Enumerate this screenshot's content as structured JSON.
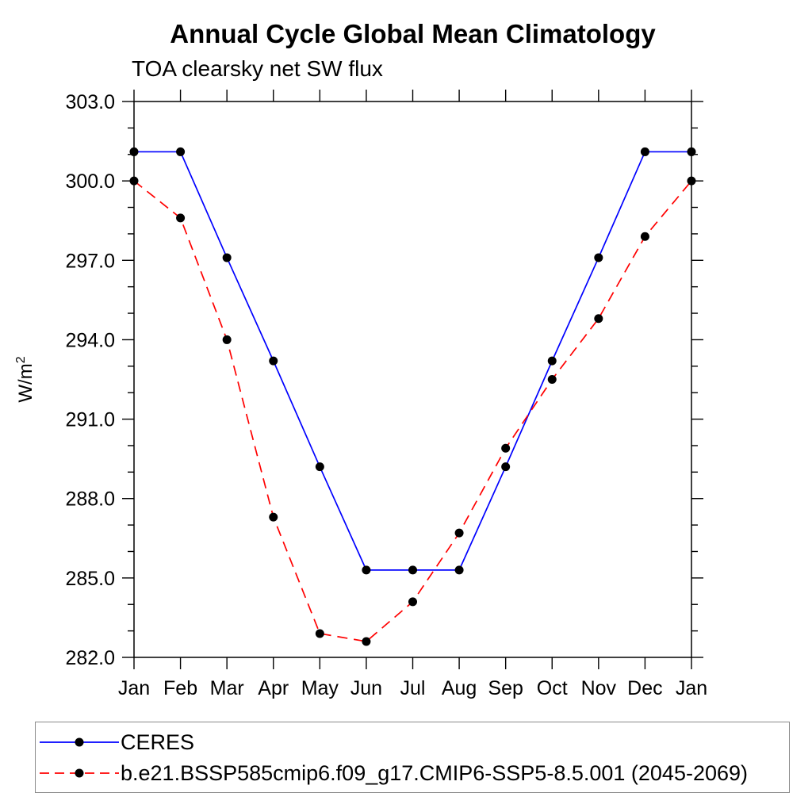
{
  "chart_data": {
    "type": "line",
    "title": "Annual Cycle Global Mean Climatology",
    "subtitle": "TOA clearsky net SW flux",
    "ylabel": "W/m²",
    "ylabel_base": "W/m",
    "ylabel_sup": "2",
    "xlabel": "",
    "categories": [
      "Jan",
      "Feb",
      "Mar",
      "Apr",
      "May",
      "Jun",
      "Jul",
      "Aug",
      "Sep",
      "Oct",
      "Nov",
      "Dec",
      "Jan"
    ],
    "ylim": [
      282.0,
      303.0
    ],
    "ytick_major_step": 3.0,
    "ytick_minor_step": 1.0,
    "ytick_label_format": "one_decimal",
    "grid": false,
    "legend_position": "bottom-left-box",
    "marker": "filled-circle",
    "marker_color": "#000000",
    "axis_color": "#000000",
    "series": [
      {
        "name": "CERES",
        "color": "#0000ff",
        "line_style": "solid",
        "values": [
          301.1,
          301.1,
          297.1,
          293.2,
          289.2,
          285.3,
          285.3,
          285.3,
          289.2,
          293.2,
          297.1,
          301.1,
          301.1
        ]
      },
      {
        "name": "b.e21.BSSP585cmip6.f09_g17.CMIP6-SSP5-8.5.001 (2045-2069)",
        "color": "#ff0000",
        "line_style": "dashed",
        "values": [
          300.0,
          298.6,
          294.0,
          287.3,
          282.9,
          282.6,
          284.1,
          286.7,
          289.9,
          292.5,
          294.8,
          297.9,
          300.0
        ]
      }
    ]
  }
}
